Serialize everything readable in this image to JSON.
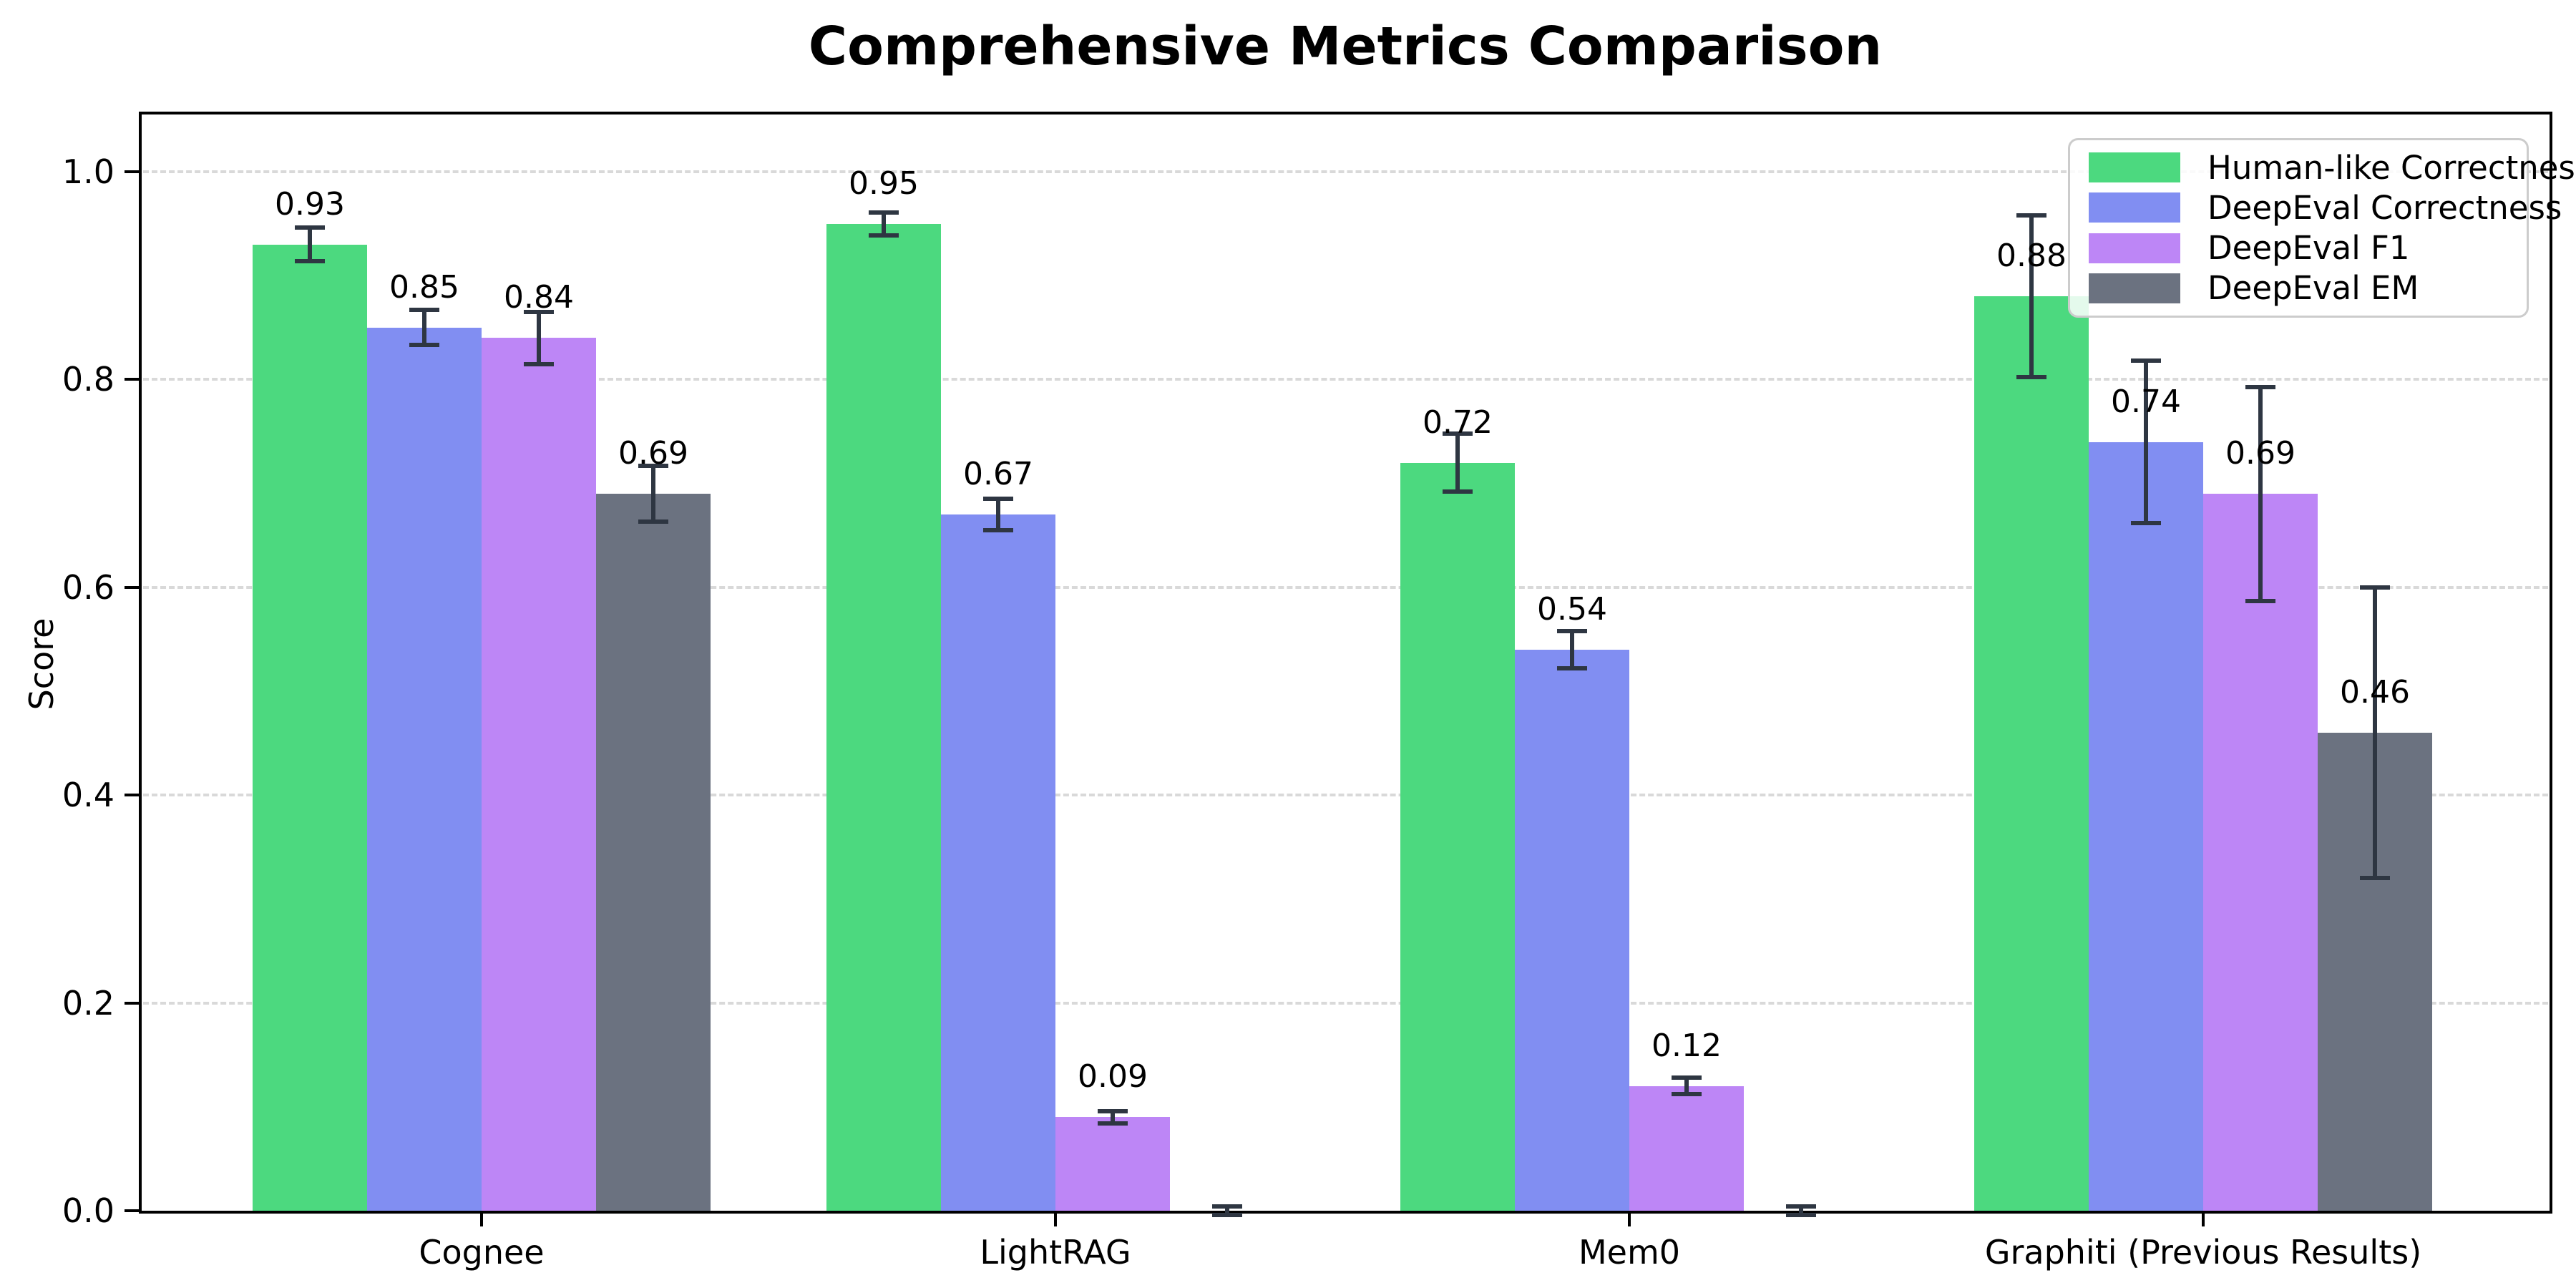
{
  "chart_data": {
    "type": "bar",
    "title": "Comprehensive Metrics Comparison",
    "xlabel": "",
    "ylabel": "Score",
    "ylim": [
      0.0,
      1.05
    ],
    "yticks": [
      0.0,
      0.2,
      0.4,
      0.6,
      0.8,
      1.0
    ],
    "ytick_labels": [
      "0.0",
      "0.2",
      "0.4",
      "0.6",
      "0.8",
      "1.0"
    ],
    "grid": "horizontal-dashed",
    "grid_color": "#d9d9d9",
    "legend_position": "upper-right",
    "error_bar_color": "#2e3642",
    "categories": [
      "Cognee",
      "LightRAG",
      "Mem0",
      "Graphiti (Previous Results)"
    ],
    "series": [
      {
        "name": "Human-like Correctness",
        "color": "#4cd97f",
        "values": [
          0.93,
          0.95,
          0.72,
          0.88
        ],
        "errors": [
          0.016,
          0.011,
          0.028,
          0.078
        ]
      },
      {
        "name": "DeepEval Correctness",
        "color": "#818ef2",
        "values": [
          0.85,
          0.67,
          0.54,
          0.74
        ],
        "errors": [
          0.017,
          0.015,
          0.018,
          0.078
        ]
      },
      {
        "name": "DeepEval F1",
        "color": "#bd86f6",
        "values": [
          0.84,
          0.09,
          0.12,
          0.69
        ],
        "errors": [
          0.025,
          0.006,
          0.008,
          0.103
        ]
      },
      {
        "name": "DeepEval EM",
        "color": "#6b7280",
        "values": [
          0.69,
          0.0,
          0.0,
          0.46
        ],
        "errors": [
          0.027,
          0.004,
          0.004,
          0.14
        ]
      }
    ]
  }
}
